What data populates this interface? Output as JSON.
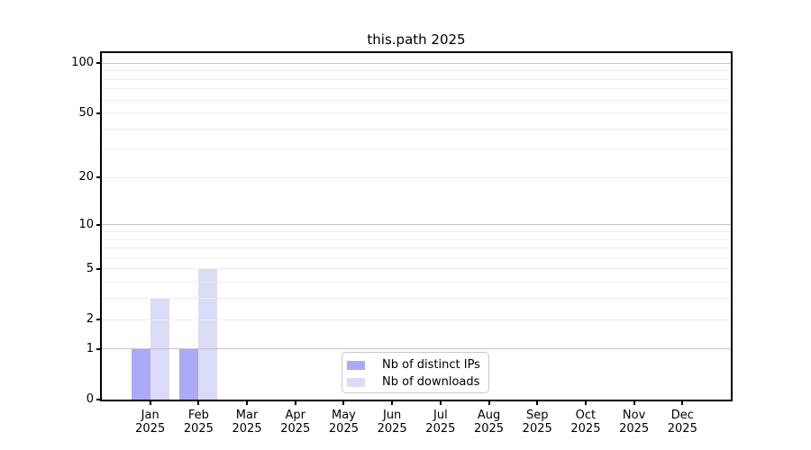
{
  "chart_data": {
    "type": "bar",
    "title": "this.path 2025",
    "x_tick_labels": [
      {
        "month": "Jan",
        "year": "2025"
      },
      {
        "month": "Feb",
        "year": "2025"
      },
      {
        "month": "Mar",
        "year": "2025"
      },
      {
        "month": "Apr",
        "year": "2025"
      },
      {
        "month": "May",
        "year": "2025"
      },
      {
        "month": "Jun",
        "year": "2025"
      },
      {
        "month": "Jul",
        "year": "2025"
      },
      {
        "month": "Aug",
        "year": "2025"
      },
      {
        "month": "Sep",
        "year": "2025"
      },
      {
        "month": "Oct",
        "year": "2025"
      },
      {
        "month": "Nov",
        "year": "2025"
      },
      {
        "month": "Dec",
        "year": "2025"
      }
    ],
    "series": [
      {
        "name": "Nb of distinct IPs",
        "color": "#aaaaf7",
        "values": [
          1,
          1,
          0,
          0,
          0,
          0,
          0,
          0,
          0,
          0,
          0,
          0
        ]
      },
      {
        "name": "Nb of downloads",
        "color": "#dbdbf7",
        "values": [
          3,
          5,
          0,
          0,
          0,
          0,
          0,
          0,
          0,
          0,
          0,
          0
        ]
      }
    ],
    "scale": "log1p",
    "ylim": [
      0,
      115
    ],
    "y_ticks": [
      0,
      1,
      2,
      5,
      10,
      20,
      50,
      100
    ],
    "y_major_gridlines": [
      1,
      10,
      100
    ],
    "y_minor_gridlines": [
      2,
      3,
      4,
      5,
      6,
      7,
      8,
      9,
      20,
      30,
      40,
      50,
      60,
      70,
      80,
      90
    ],
    "grid": "on",
    "legend_position": "lower center inside",
    "colors": {
      "major_grid": "#c6c6c6",
      "minor_grid": "#ececec",
      "axis": "#000000",
      "background": "#ffffff"
    }
  }
}
